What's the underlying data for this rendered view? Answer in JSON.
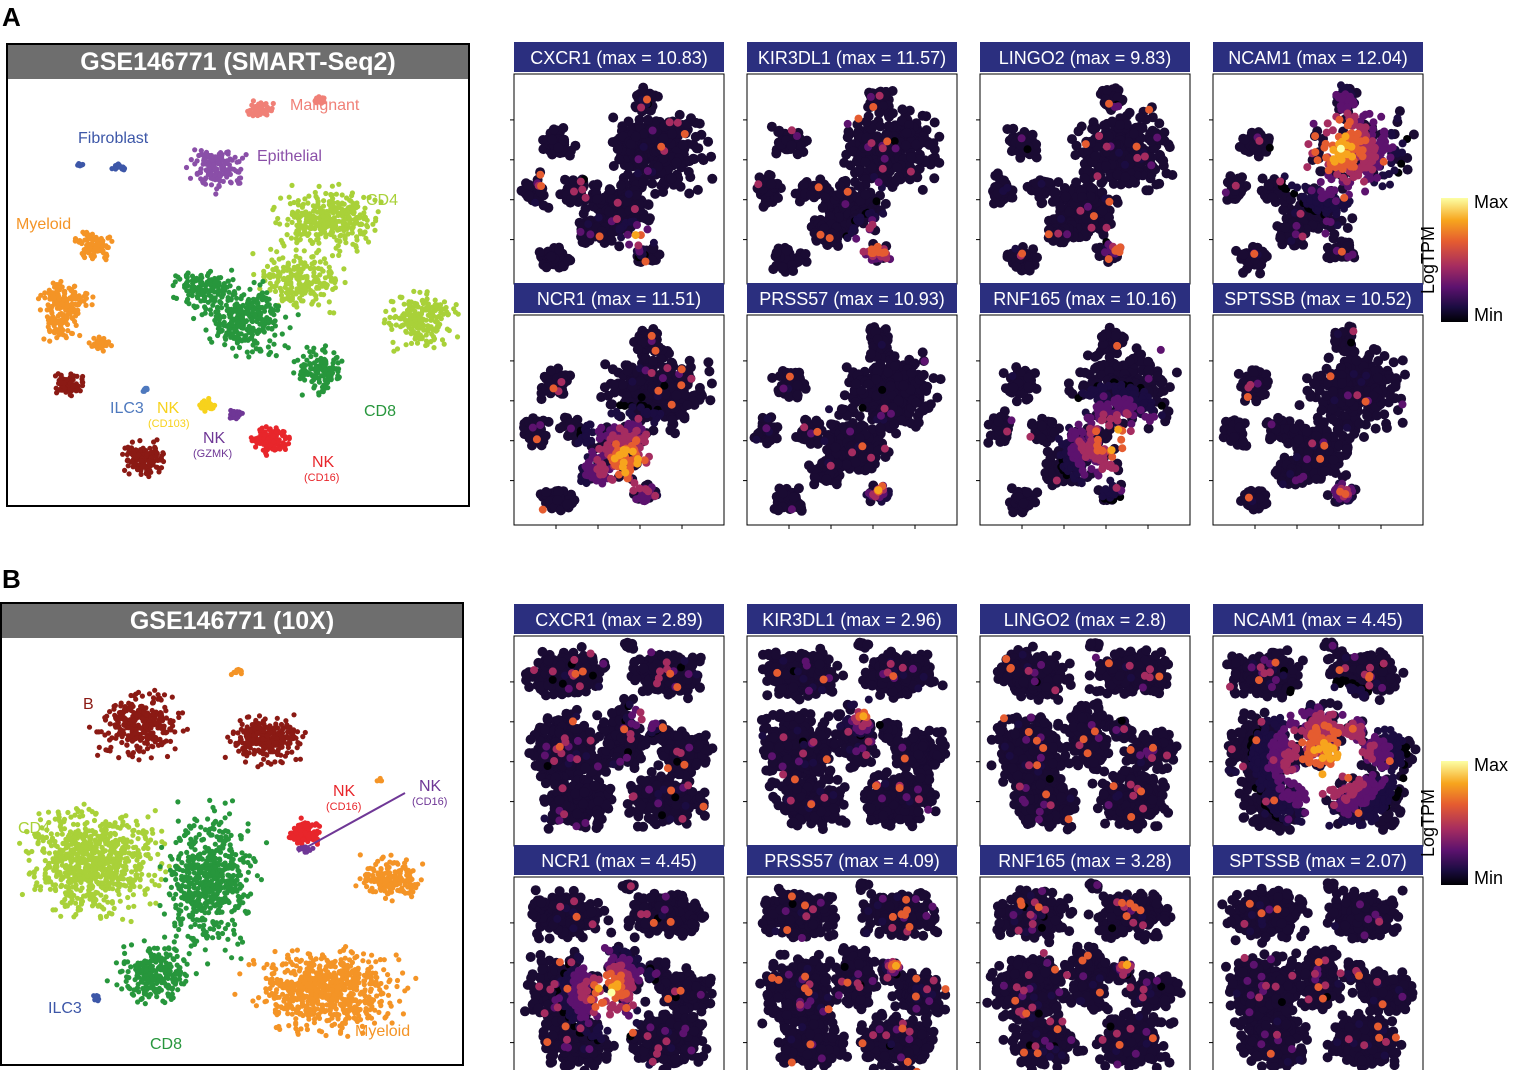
{
  "panel_letters": {
    "a": "A",
    "b": "B"
  },
  "legend": {
    "max": "Max",
    "min": "Min",
    "title": "LogTPM",
    "colors": [
      "#fcffa4",
      "#f7a51d",
      "#e55c30",
      "#a52c60",
      "#5c126e",
      "#1b0c41",
      "#000004"
    ]
  },
  "chart_data": [
    {
      "type": "scatter",
      "panel": "A",
      "title": "GSE146771 (SMART-Seq2)",
      "clusters": [
        {
          "name": "Malignant",
          "label": "Malignant",
          "color": "#f08077"
        },
        {
          "name": "Fibroblast",
          "label": "Fibroblast",
          "color": "#3d57a8"
        },
        {
          "name": "Epithelial",
          "label": "Epithelial",
          "color": "#8a4fa8"
        },
        {
          "name": "CD4",
          "label": "CD4",
          "color": "#a9d139"
        },
        {
          "name": "Myeloid",
          "label": "Myeloid",
          "color": "#f49426"
        },
        {
          "name": "ILC3",
          "label": "ILC3",
          "color": "#4e79be"
        },
        {
          "name": "NK (CD103)",
          "label": "NK",
          "sub": "(CD103)",
          "color": "#f7d21c"
        },
        {
          "name": "NK (GZMK)",
          "label": "NK",
          "sub": "(GZMK)",
          "color": "#6f3796"
        },
        {
          "name": "NK (CD16)",
          "label": "NK",
          "sub": "(CD16)",
          "color": "#e8262b"
        },
        {
          "name": "CD8",
          "label": "CD8",
          "color": "#27963c"
        },
        {
          "name": "B",
          "label": "",
          "color": "#8b1a14"
        }
      ]
    },
    {
      "type": "scatter",
      "panel": "A",
      "genes": [
        {
          "name": "CXCR1",
          "max": 10.83,
          "title": "CXCR1 (max = 10.83)"
        },
        {
          "name": "KIR3DL1",
          "max": 11.57,
          "title": "KIR3DL1 (max = 11.57)"
        },
        {
          "name": "LINGO2",
          "max": 9.83,
          "title": "LINGO2 (max = 9.83)"
        },
        {
          "name": "NCAM1",
          "max": 12.04,
          "title": "NCAM1 (max = 12.04)"
        },
        {
          "name": "NCR1",
          "max": 11.51,
          "title": "NCR1 (max = 11.51)"
        },
        {
          "name": "PRSS57",
          "max": 10.93,
          "title": "PRSS57 (max = 10.93)"
        },
        {
          "name": "RNF165",
          "max": 10.16,
          "title": "RNF165 (max = 10.16)"
        },
        {
          "name": "SPTSSB",
          "max": 10.52,
          "title": "SPTSSB (max = 10.52)"
        }
      ]
    },
    {
      "type": "scatter",
      "panel": "B",
      "title": "GSE146771 (10X)",
      "clusters": [
        {
          "name": "B",
          "label": "B",
          "color": "#8b1a14"
        },
        {
          "name": "NK (CD16) red",
          "label": "NK",
          "sub": "(CD16)",
          "color": "#e8262b"
        },
        {
          "name": "NK (CD16) purple",
          "label": "NK",
          "sub": "(CD16)",
          "color": "#6f3796"
        },
        {
          "name": "CD4",
          "label": "CD4",
          "color": "#a9d139"
        },
        {
          "name": "CD8",
          "label": "CD8",
          "color": "#27963c"
        },
        {
          "name": "ILC3",
          "label": "ILC3",
          "color": "#3d57a8"
        },
        {
          "name": "Myeloid",
          "label": "Myeloid",
          "color": "#f49426"
        }
      ]
    },
    {
      "type": "scatter",
      "panel": "B",
      "genes": [
        {
          "name": "CXCR1",
          "max": 2.89,
          "title": "CXCR1 (max = 2.89)"
        },
        {
          "name": "KIR3DL1",
          "max": 2.96,
          "title": "KIR3DL1 (max = 2.96)"
        },
        {
          "name": "LINGO2",
          "max": 2.8,
          "title": "LINGO2 (max = 2.8)"
        },
        {
          "name": "NCAM1",
          "max": 4.45,
          "title": "NCAM1 (max = 4.45)"
        },
        {
          "name": "NCR1",
          "max": 4.45,
          "title": "NCR1 (max = 4.45)"
        },
        {
          "name": "PRSS57",
          "max": 4.09,
          "title": "PRSS57 (max = 4.09)"
        },
        {
          "name": "RNF165",
          "max": 3.28,
          "title": "RNF165 (max = 3.28)"
        },
        {
          "name": "SPTSSB",
          "max": 2.07,
          "title": "SPTSSB (max = 2.07)"
        }
      ]
    }
  ]
}
